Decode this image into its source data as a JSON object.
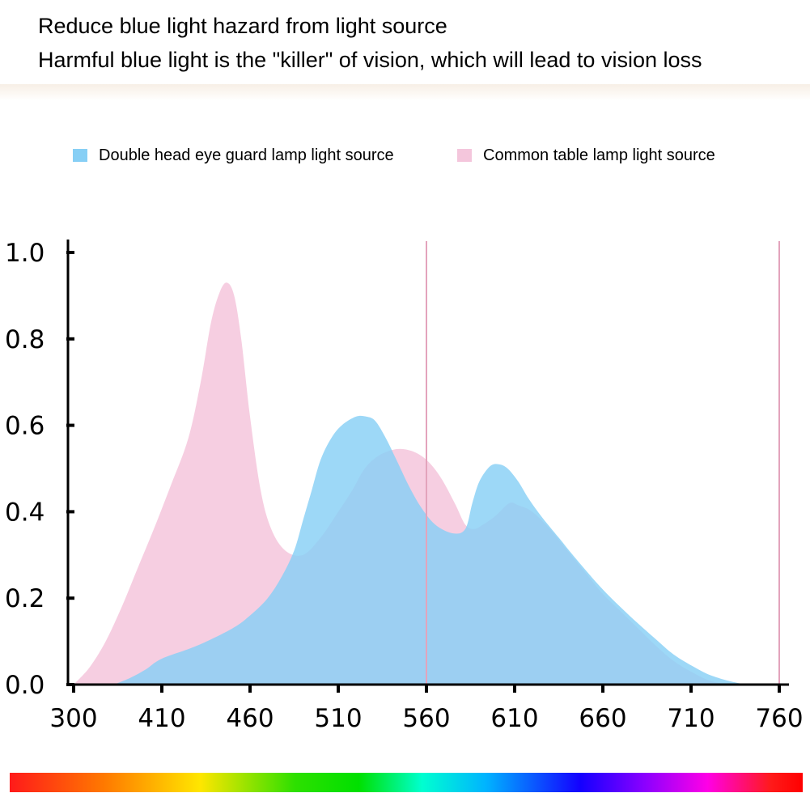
{
  "header": {
    "line1": "Reduce blue light hazard from light source",
    "line2": "Harmful blue light is the \"killer\" of vision, which will lead to vision loss"
  },
  "chart_data": {
    "type": "area",
    "x_ticks": [
      300,
      410,
      460,
      510,
      560,
      610,
      660,
      710,
      760
    ],
    "y_ticks": [
      "0.0",
      "0.2",
      "0.4",
      "0.6",
      "0.8",
      "1.0"
    ],
    "ylim": [
      0,
      1.0
    ],
    "reference_lines_x": [
      560,
      760
    ],
    "series": [
      {
        "name": "Common table lamp light source",
        "color": "#f4c6dc",
        "points": [
          [
            300,
            0.0
          ],
          [
            320,
            0.04
          ],
          [
            340,
            0.1
          ],
          [
            360,
            0.18
          ],
          [
            380,
            0.27
          ],
          [
            400,
            0.36
          ],
          [
            415,
            0.46
          ],
          [
            425,
            0.57
          ],
          [
            432,
            0.7
          ],
          [
            438,
            0.84
          ],
          [
            443,
            0.91
          ],
          [
            447,
            0.93
          ],
          [
            451,
            0.9
          ],
          [
            455,
            0.8
          ],
          [
            460,
            0.62
          ],
          [
            466,
            0.45
          ],
          [
            472,
            0.36
          ],
          [
            480,
            0.31
          ],
          [
            490,
            0.3
          ],
          [
            500,
            0.34
          ],
          [
            510,
            0.4
          ],
          [
            518,
            0.45
          ],
          [
            525,
            0.5
          ],
          [
            533,
            0.53
          ],
          [
            543,
            0.545
          ],
          [
            552,
            0.54
          ],
          [
            560,
            0.52
          ],
          [
            568,
            0.48
          ],
          [
            576,
            0.42
          ],
          [
            582,
            0.37
          ],
          [
            587,
            0.36
          ],
          [
            592,
            0.37
          ],
          [
            599,
            0.39
          ],
          [
            607,
            0.42
          ],
          [
            612,
            0.415
          ],
          [
            620,
            0.4
          ],
          [
            630,
            0.36
          ],
          [
            640,
            0.31
          ],
          [
            650,
            0.26
          ],
          [
            660,
            0.21
          ],
          [
            670,
            0.17
          ],
          [
            680,
            0.13
          ],
          [
            690,
            0.09
          ],
          [
            700,
            0.055
          ],
          [
            710,
            0.03
          ],
          [
            720,
            0.01
          ],
          [
            730,
            0.0
          ]
        ]
      },
      {
        "name": "Double head eye guard lamp light source",
        "color": "#87cff5",
        "points": [
          [
            350,
            0.0
          ],
          [
            370,
            0.015
          ],
          [
            390,
            0.035
          ],
          [
            410,
            0.06
          ],
          [
            430,
            0.09
          ],
          [
            450,
            0.13
          ],
          [
            460,
            0.16
          ],
          [
            470,
            0.2
          ],
          [
            478,
            0.25
          ],
          [
            485,
            0.31
          ],
          [
            490,
            0.38
          ],
          [
            495,
            0.45
          ],
          [
            500,
            0.52
          ],
          [
            506,
            0.57
          ],
          [
            512,
            0.6
          ],
          [
            520,
            0.62
          ],
          [
            526,
            0.62
          ],
          [
            531,
            0.61
          ],
          [
            537,
            0.57
          ],
          [
            543,
            0.52
          ],
          [
            550,
            0.46
          ],
          [
            557,
            0.41
          ],
          [
            565,
            0.37
          ],
          [
            575,
            0.35
          ],
          [
            582,
            0.36
          ],
          [
            586,
            0.42
          ],
          [
            590,
            0.47
          ],
          [
            596,
            0.505
          ],
          [
            601,
            0.51
          ],
          [
            606,
            0.5
          ],
          [
            612,
            0.47
          ],
          [
            618,
            0.43
          ],
          [
            625,
            0.39
          ],
          [
            635,
            0.34
          ],
          [
            645,
            0.29
          ],
          [
            660,
            0.22
          ],
          [
            675,
            0.16
          ],
          [
            690,
            0.105
          ],
          [
            700,
            0.07
          ],
          [
            712,
            0.04
          ],
          [
            722,
            0.02
          ],
          [
            735,
            0.005
          ],
          [
            742,
            0.0
          ]
        ]
      }
    ]
  }
}
